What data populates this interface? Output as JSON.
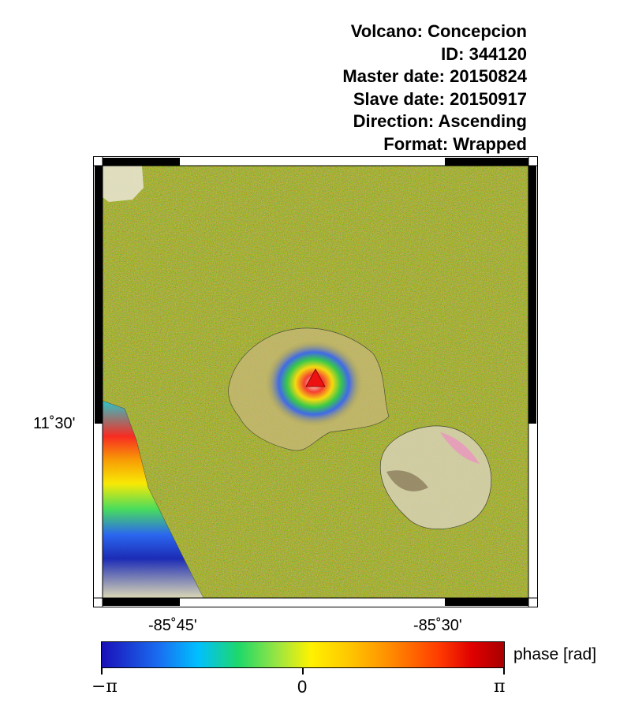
{
  "header": {
    "volcano": "Volcano: Concepcion",
    "id": "ID: 344120",
    "master_date": "Master date: 20150824",
    "slave_date": "Slave date: 20150917",
    "direction": "Direction: Ascending",
    "format": "Format: Wrapped"
  },
  "map": {
    "lat_tick_label": "11˚30'",
    "lon_tick_labels": [
      "-85˚45'",
      "-85˚30'"
    ],
    "marker": "volcano-summit",
    "marker_color": "#ee1111",
    "background_color": "#b5a53a"
  },
  "colorbar": {
    "title": "phase [rad]",
    "min_label": "−π",
    "mid_label": "0",
    "max_label": "π",
    "colors": [
      "#1a10b8",
      "#00c0ff",
      "#1ed86a",
      "#fff200",
      "#ff8a00",
      "#e00000",
      "#a80000"
    ]
  }
}
